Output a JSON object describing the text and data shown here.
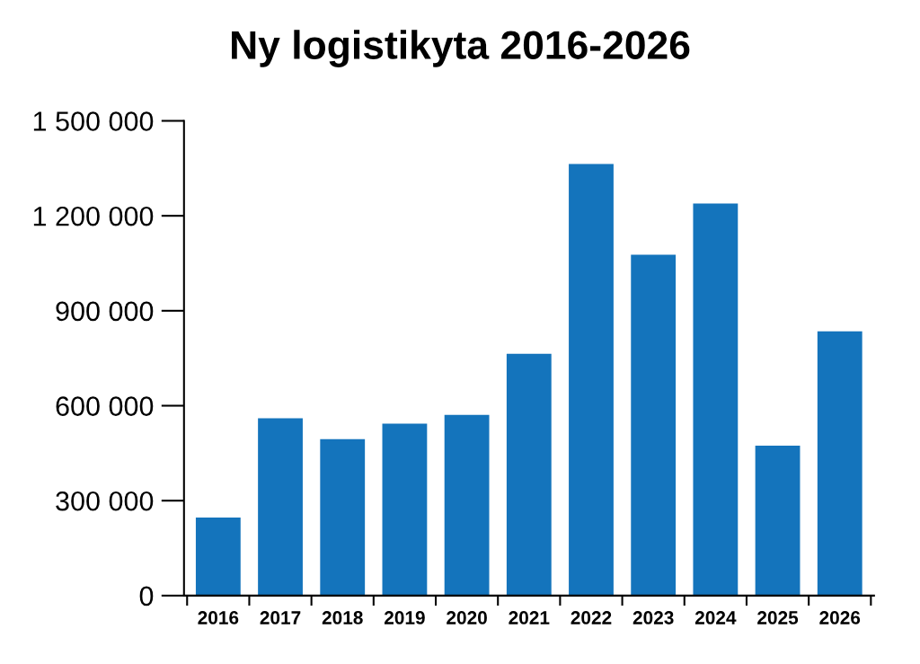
{
  "chart_data": {
    "type": "bar",
    "title": "Ny logistikyta 2016-2026",
    "categories": [
      "2016",
      "2017",
      "2018",
      "2019",
      "2020",
      "2021",
      "2022",
      "2023",
      "2024",
      "2025",
      "2026"
    ],
    "values": [
      247000,
      560000,
      494000,
      543000,
      571000,
      764000,
      1364000,
      1077000,
      1239000,
      474000,
      835000
    ],
    "color": "#1474bc",
    "ylim": [
      0,
      1500000
    ],
    "yticks": [
      {
        "value": 0,
        "label": "0"
      },
      {
        "value": 300000,
        "label": "300 000"
      },
      {
        "value": 600000,
        "label": "600 000"
      },
      {
        "value": 900000,
        "label": "900 000"
      },
      {
        "value": 1200000,
        "label": "1 200 000"
      },
      {
        "value": 1500000,
        "label": "1 500 000"
      }
    ],
    "grid": false,
    "legend": false
  }
}
